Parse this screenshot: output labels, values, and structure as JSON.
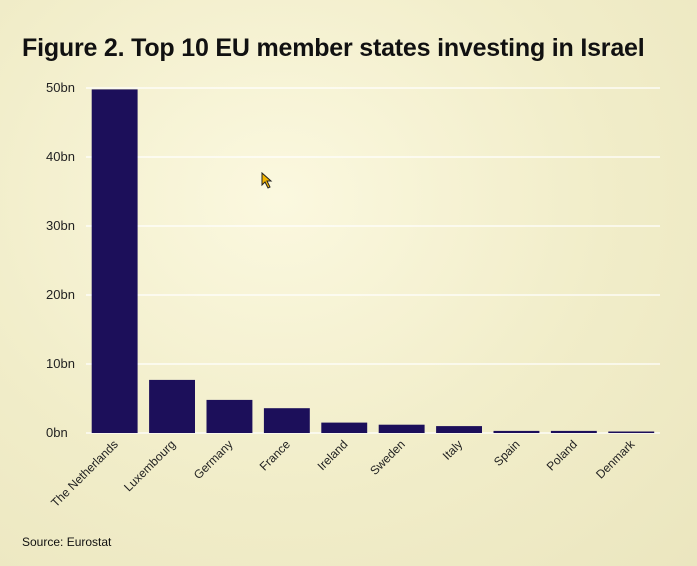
{
  "title": "Figure 2. Top 10 EU member states investing in Israel",
  "source": "Source: Eurostat",
  "colors": {
    "bar": "#1c0f5a",
    "grid": "#ffffff",
    "background": "#f1edc9"
  },
  "chart_data": {
    "type": "bar",
    "title": "Figure 2. Top 10 EU member states investing in Israel",
    "xlabel": "",
    "ylabel": "",
    "categories": [
      "The Netherlands",
      "Luxembourg",
      "Germany",
      "France",
      "Ireland",
      "Sweden",
      "Italy",
      "Spain",
      "Poland",
      "Denmark"
    ],
    "values": [
      49.8,
      7.7,
      4.8,
      3.6,
      1.5,
      1.2,
      1.0,
      0.3,
      0.3,
      0.2
    ],
    "ylim": [
      0,
      50
    ],
    "yticks": [
      0,
      10,
      20,
      30,
      40,
      50
    ],
    "ytick_labels": [
      "0bn",
      "10bn",
      "20bn",
      "30bn",
      "40bn",
      "50bn"
    ],
    "grid": true,
    "legend": "none"
  }
}
